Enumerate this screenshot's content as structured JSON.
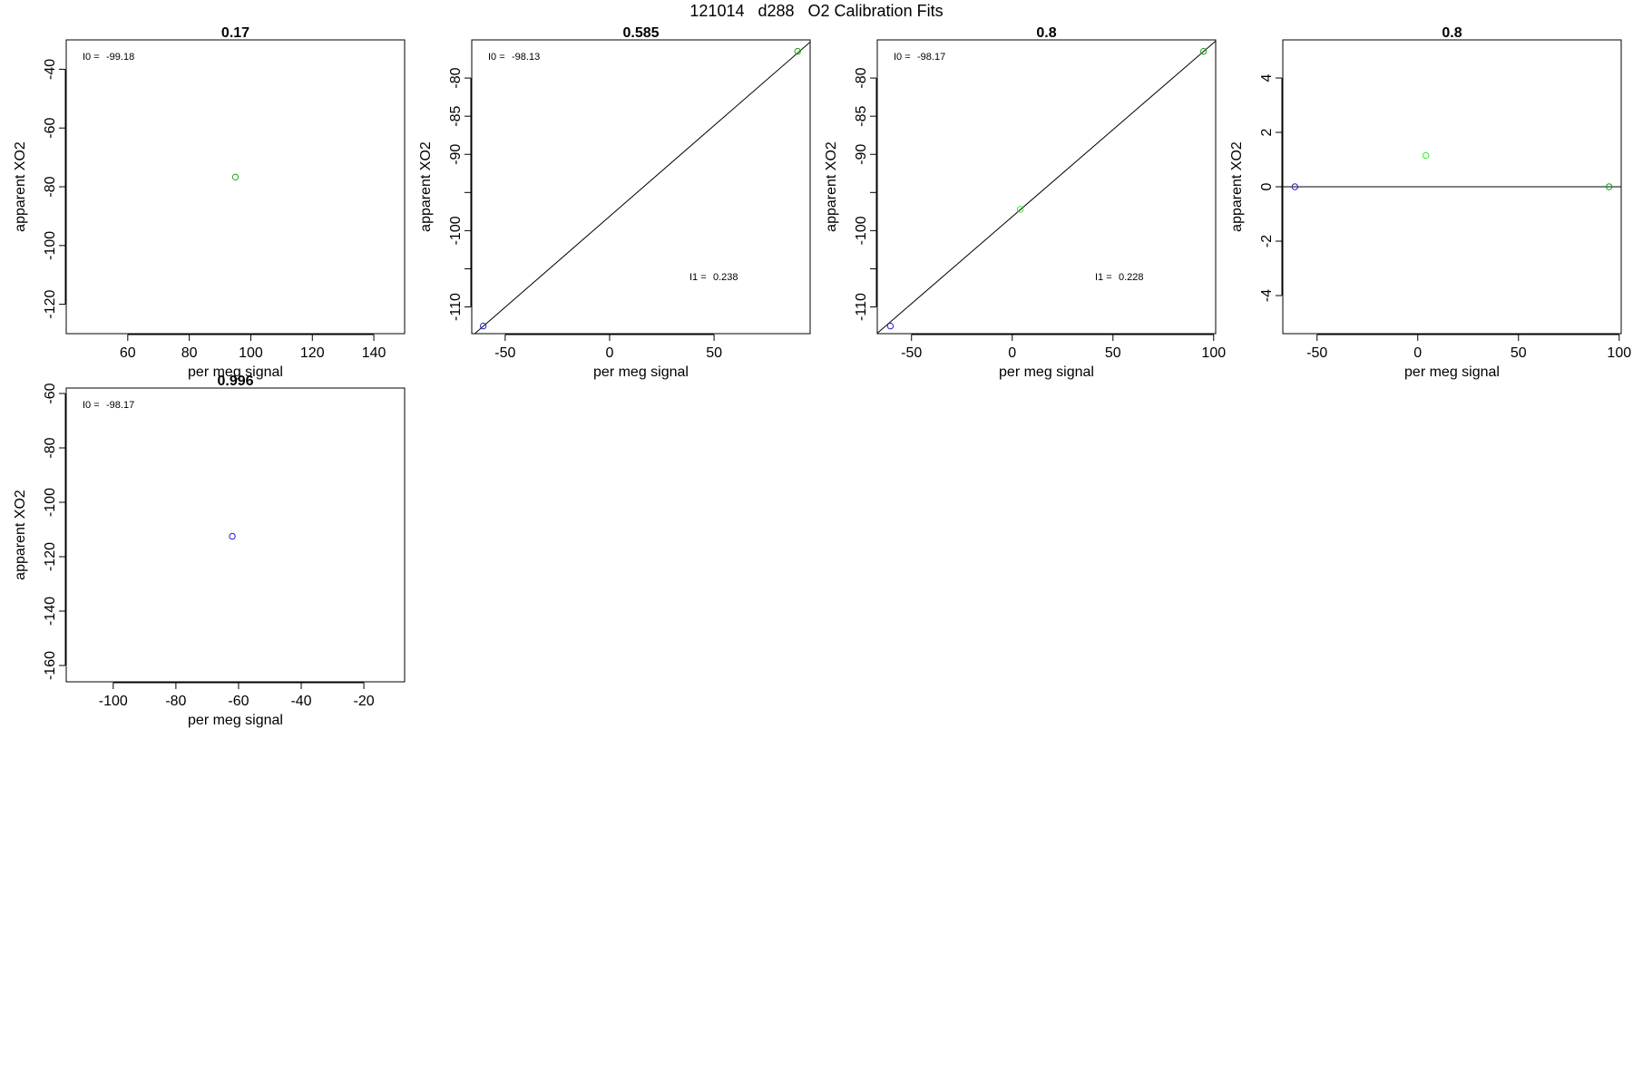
{
  "figure": {
    "title": "121014   d288   O2 Calibration Fits"
  },
  "colors": {
    "axis": "#000000",
    "fit_line": "#000000",
    "point_green_dark": "#1aa01a",
    "point_green": "#33ee33",
    "point_blue": "#2222cc"
  },
  "chart_data": [
    {
      "type": "scatter",
      "title": "0.17",
      "xlabel": "per meg signal",
      "ylabel": "apparent XO2",
      "xlim": [
        40,
        150
      ],
      "ylim": [
        -130,
        -30
      ],
      "xticks": [
        60,
        80,
        100,
        120,
        140
      ],
      "yticks": [
        -40,
        -60,
        -80,
        -100,
        -120
      ],
      "annotations": [
        {
          "label": "I0 =",
          "value": "-99.18"
        }
      ],
      "points": [
        {
          "x": 95,
          "y": -76.7,
          "color": "point_green_dark"
        }
      ],
      "fit_line": null
    },
    {
      "type": "scatter",
      "title": "0.585",
      "xlabel": "per meg signal",
      "ylabel": "apparent XO2",
      "xlim": [
        -66,
        96
      ],
      "ylim": [
        -113.5,
        -75
      ],
      "xticks": [
        -50,
        0,
        50
      ],
      "yticks": [
        -80,
        -85,
        -90,
        -95,
        -100,
        -105,
        -110
      ],
      "yticklabels": [
        "-80",
        "-85",
        "-90",
        "",
        "-100",
        "",
        "-110"
      ],
      "annotations": [
        {
          "label": "I0 =",
          "value": "-98.13"
        },
        {
          "label": "I1 =",
          "value": "0.238"
        }
      ],
      "points": [
        {
          "x": -60.5,
          "y": -112.5,
          "color": "point_blue"
        },
        {
          "x": 90,
          "y": -76.5,
          "color": "point_green_dark"
        }
      ],
      "fit_line": {
        "intercept": -98.13,
        "slope": 0.238
      }
    },
    {
      "type": "scatter",
      "title": "0.8",
      "xlabel": "per meg signal",
      "ylabel": "apparent XO2",
      "xlim": [
        -67,
        101
      ],
      "ylim": [
        -113.5,
        -75
      ],
      "xticks": [
        -50,
        0,
        50,
        100
      ],
      "yticks": [
        -80,
        -85,
        -90,
        -95,
        -100,
        -105,
        -110
      ],
      "yticklabels": [
        "-80",
        "-85",
        "-90",
        "",
        "-100",
        "",
        "-110"
      ],
      "annotations": [
        {
          "label": "I0 =",
          "value": "-98.17"
        },
        {
          "label": "I1 =",
          "value": "0.228"
        }
      ],
      "points": [
        {
          "x": -60.5,
          "y": -112.5,
          "color": "point_blue"
        },
        {
          "x": 4,
          "y": -97.2,
          "color": "point_green"
        },
        {
          "x": 95,
          "y": -76.5,
          "color": "point_green_dark"
        }
      ],
      "fit_line": {
        "intercept": -98.17,
        "slope": 0.228
      }
    },
    {
      "type": "scatter",
      "title": "0.8",
      "xlabel": "per meg signal",
      "ylabel": "apparent XO2",
      "xlim": [
        -67,
        101
      ],
      "ylim": [
        -5.4,
        5.4
      ],
      "xticks": [
        -50,
        0,
        50,
        100
      ],
      "yticks": [
        4,
        2,
        0,
        -2,
        -4
      ],
      "annotations": [],
      "points": [
        {
          "x": -61,
          "y": 0,
          "color": "point_blue"
        },
        {
          "x": 4,
          "y": 1.15,
          "color": "point_green"
        },
        {
          "x": 95,
          "y": 0,
          "color": "point_green_dark"
        }
      ],
      "fit_line": {
        "intercept": 0,
        "slope": 0
      }
    },
    {
      "type": "scatter",
      "title": "0.996",
      "xlabel": "per meg signal",
      "ylabel": "apparent XO2",
      "xlim": [
        -115,
        -7
      ],
      "ylim": [
        -166,
        -58
      ],
      "xticks": [
        -100,
        -80,
        -60,
        -40,
        -20
      ],
      "yticks": [
        -60,
        -80,
        -100,
        -120,
        -140,
        -160
      ],
      "annotations": [
        {
          "label": "I0 =",
          "value": "-98.17"
        }
      ],
      "points": [
        {
          "x": -62,
          "y": -112.5,
          "color": "point_blue"
        }
      ],
      "fit_line": null
    }
  ]
}
